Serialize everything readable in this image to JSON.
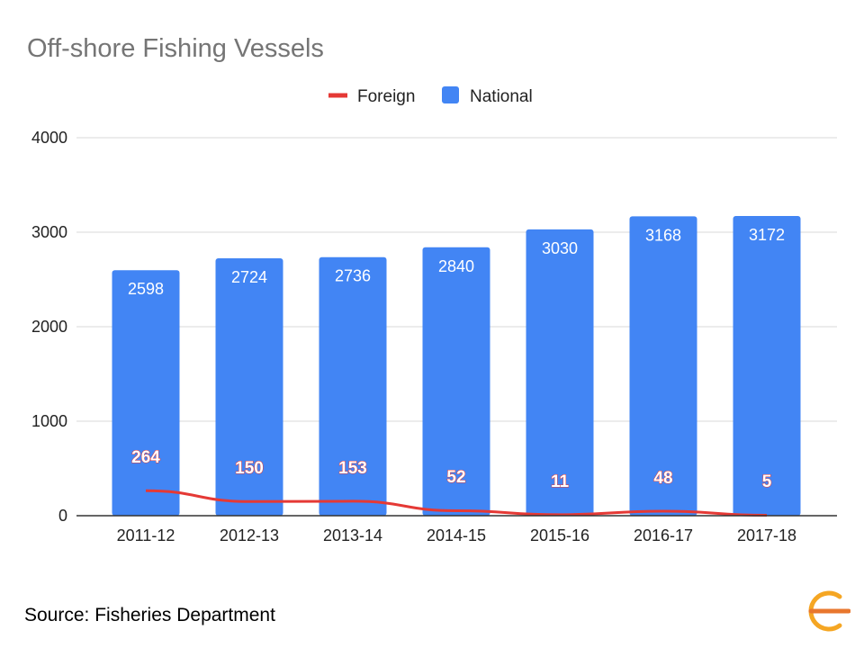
{
  "source_text": "Source: Fisheries Department",
  "logo": {
    "icon": "orange-circular-logo-icon",
    "color": "#f5a623"
  },
  "chart_data": {
    "type": "bar",
    "title": "Off-shore Fishing Vessels",
    "xlabel": "",
    "ylabel": "",
    "categories": [
      "2011-12",
      "2012-13",
      "2013-14",
      "2014-15",
      "2015-16",
      "2016-17",
      "2017-18"
    ],
    "series": [
      {
        "name": "National",
        "type": "bar",
        "color": "#4285f4",
        "values": [
          2598,
          2724,
          2736,
          2840,
          3030,
          3168,
          3172
        ]
      },
      {
        "name": "Foreign",
        "type": "line",
        "color": "#e53935",
        "values": [
          264,
          150,
          153,
          52,
          11,
          48,
          5
        ]
      }
    ],
    "ylim": [
      0,
      4000
    ],
    "yticks": [
      0,
      1000,
      2000,
      3000,
      4000
    ],
    "grid": true,
    "legend": "top-center",
    "data_labels": true
  }
}
